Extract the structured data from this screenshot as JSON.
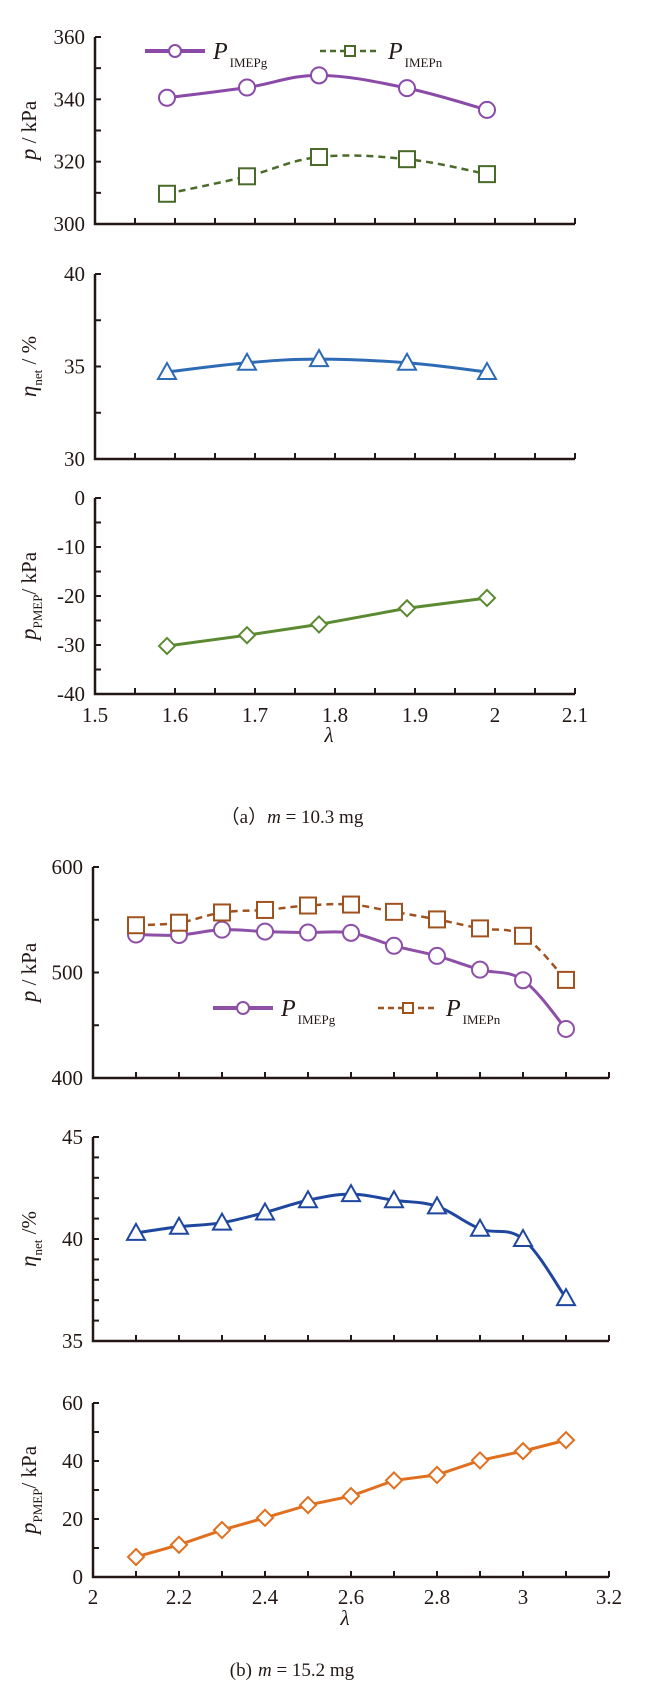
{
  "figure": {
    "captions": [
      "（a）",
      "m = 10.3 mg",
      "(b)",
      "m = 15.2 mg"
    ],
    "caption_a": {
      "label": "（a）",
      "var": "m",
      "text": " = 10.3 mg"
    },
    "caption_b": {
      "label": "(b)",
      "var": "m",
      "text": " = 15.2 mg"
    }
  },
  "chart_data": [
    {
      "id": "a1",
      "type": "line",
      "group": "a",
      "ylabel": {
        "var": "p",
        "sub": "",
        "unit": " / kPa"
      },
      "ylim": [
        300,
        360
      ],
      "yticks_major": [
        300,
        320,
        340,
        360
      ],
      "yticks_minor_step": 10,
      "xlim": [
        1.5,
        2.1
      ],
      "xticks_step": 0.05,
      "show_xticklabels": false,
      "legend": {
        "placement": "top-left"
      },
      "series": [
        {
          "name": "P",
          "sub": "IMEPg",
          "color": "#8a4aa8",
          "marker": "circle",
          "dash": false,
          "smooth": true,
          "x": [
            1.59,
            1.69,
            1.78,
            1.89,
            1.99
          ],
          "y": [
            340.5,
            343.8,
            347.7,
            343.6,
            336.6
          ]
        },
        {
          "name": "P",
          "sub": "IMEPn",
          "color": "#4a6a2a",
          "marker": "square",
          "dash": true,
          "smooth": true,
          "x": [
            1.59,
            1.69,
            1.78,
            1.89,
            1.99
          ],
          "y": [
            309.7,
            315.3,
            321.5,
            320.8,
            316.0
          ]
        }
      ]
    },
    {
      "id": "a2",
      "type": "line",
      "group": "a",
      "ylabel": {
        "var": "η",
        "sub": "net",
        "unit": " / %"
      },
      "ylim": [
        30,
        40
      ],
      "yticks_major": [
        30,
        35,
        40
      ],
      "yticks_minor_step": 2.5,
      "xlim": [
        1.5,
        2.1
      ],
      "xticks_step": 0.05,
      "show_xticklabels": false,
      "series": [
        {
          "name": "η_net",
          "color": "#2e6bb5",
          "marker": "triangle",
          "dash": false,
          "smooth": true,
          "x": [
            1.59,
            1.69,
            1.78,
            1.89,
            1.99
          ],
          "y": [
            34.7,
            35.2,
            35.4,
            35.2,
            34.7
          ]
        }
      ]
    },
    {
      "id": "a3",
      "type": "line",
      "group": "a",
      "ylabel": {
        "var": "p",
        "sub": "PMEP",
        "unit": "/ kPa"
      },
      "ylim": [
        -40,
        0
      ],
      "yticks_major": [
        -40,
        -30,
        -20,
        -10,
        0
      ],
      "yticks_minor_step": 5,
      "xlim": [
        1.5,
        2.1
      ],
      "xticks_step": 0.05,
      "show_xticklabels": true,
      "xticklabels": [
        "1.5",
        "1.6",
        "1.7",
        "1.8",
        "1.9",
        "2",
        "2.1"
      ],
      "xlabel": "λ",
      "series": [
        {
          "name": "p_PMEP",
          "color": "#5b8a32",
          "marker": "diamond",
          "dash": false,
          "smooth": false,
          "x": [
            1.59,
            1.69,
            1.78,
            1.89,
            1.99
          ],
          "y": [
            -30.2,
            -28.0,
            -25.8,
            -22.5,
            -20.4
          ]
        }
      ]
    },
    {
      "id": "b1",
      "type": "line",
      "group": "b",
      "ylabel": {
        "var": "p",
        "sub": "",
        "unit": " / kPa"
      },
      "ylim": [
        400,
        600
      ],
      "yticks_major": [
        400,
        500,
        600
      ],
      "yticks_minor_step": 50,
      "xlim": [
        2.0,
        3.2
      ],
      "xticks_step": 0.1,
      "show_xticklabels": false,
      "legend": {
        "placement": "lower-center"
      },
      "series": [
        {
          "name": "P",
          "sub": "IMEPg",
          "color": "#8e4fa6",
          "marker": "circle",
          "dash": false,
          "smooth": true,
          "x": [
            2.1,
            2.2,
            2.3,
            2.4,
            2.5,
            2.6,
            2.7,
            2.8,
            2.9,
            3.0,
            3.1
          ],
          "y": [
            536,
            535.5,
            540.6,
            538.8,
            537.9,
            537.6,
            525.3,
            515.7,
            502.7,
            492.7,
            446.5
          ]
        },
        {
          "name": "P",
          "sub": "IMEPn",
          "color": "#a0521e",
          "marker": "square",
          "dash": true,
          "smooth": true,
          "x": [
            2.1,
            2.2,
            2.3,
            2.4,
            2.5,
            2.6,
            2.7,
            2.8,
            2.9,
            3.0,
            3.1
          ],
          "y": [
            544.8,
            547.2,
            556.9,
            559.3,
            563.5,
            564.4,
            557.5,
            550.3,
            541.8,
            534.8,
            493.0
          ]
        }
      ]
    },
    {
      "id": "b2",
      "type": "line",
      "group": "b",
      "ylabel": {
        "var": "η",
        "sub": "net",
        "unit": " /%"
      },
      "ylim": [
        35,
        45
      ],
      "yticks_major": [
        35,
        40,
        45
      ],
      "yticks_minor_step": 1,
      "xlim": [
        2.0,
        3.2
      ],
      "xticks_step": 0.1,
      "show_xticklabels": false,
      "series": [
        {
          "name": "η_net",
          "color": "#1f47a0",
          "marker": "triangle",
          "dash": false,
          "smooth": true,
          "x": [
            2.1,
            2.2,
            2.3,
            2.4,
            2.5,
            2.6,
            2.7,
            2.8,
            2.9,
            3.0,
            3.1
          ],
          "y": [
            40.3,
            40.6,
            40.8,
            41.3,
            41.9,
            42.2,
            41.9,
            41.6,
            40.5,
            40.0,
            37.1
          ]
        }
      ]
    },
    {
      "id": "b3",
      "type": "line",
      "group": "b",
      "ylabel": {
        "var": "p",
        "sub": "PMEP",
        "unit": "/ kPa"
      },
      "ylim": [
        0,
        60
      ],
      "yticks_major": [
        0,
        20,
        40,
        60
      ],
      "yticks_minor_step": 10,
      "xlim": [
        2.0,
        3.2
      ],
      "xticks_step": 0.1,
      "show_xticklabels": true,
      "xticklabels": [
        "2",
        "2.2",
        "2.4",
        "2.6",
        "2.8",
        "3",
        "3.2"
      ],
      "xlabel": "λ",
      "series": [
        {
          "name": "p_PMEP",
          "color": "#e0701f",
          "marker": "diamond",
          "dash": false,
          "smooth": false,
          "x": [
            2.1,
            2.2,
            2.3,
            2.4,
            2.5,
            2.6,
            2.7,
            2.8,
            2.9,
            3.0,
            3.1
          ],
          "y": [
            6.9,
            11.1,
            16.2,
            20.4,
            24.8,
            27.9,
            33.3,
            35.2,
            40.2,
            43.4,
            47.2
          ]
        }
      ]
    }
  ]
}
